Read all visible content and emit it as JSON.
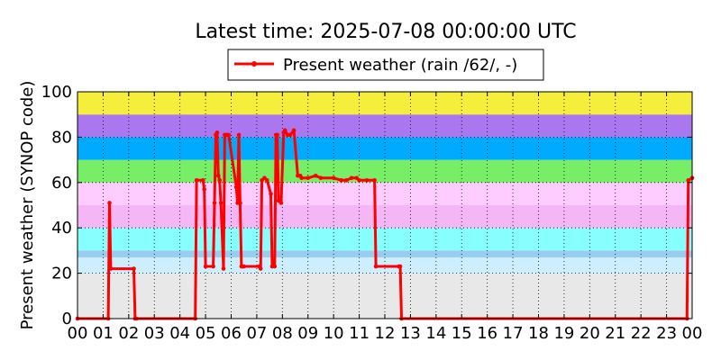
{
  "chart_data": {
    "type": "line",
    "title": "Latest time: 2025-07-08 00:00:00 UTC",
    "ylabel": "Present weather (SYNOP code)",
    "xlabel": "",
    "xlim": [
      0,
      24
    ],
    "ylim": [
      0,
      100
    ],
    "x_ticks": [
      "00",
      "01",
      "02",
      "03",
      "04",
      "05",
      "06",
      "07",
      "08",
      "09",
      "10",
      "11",
      "12",
      "13",
      "14",
      "15",
      "16",
      "17",
      "18",
      "19",
      "20",
      "21",
      "22",
      "23",
      "00"
    ],
    "y_ticks": [
      "0",
      "20",
      "40",
      "60",
      "80",
      "100"
    ],
    "grid": true,
    "legend": {
      "placement": "top",
      "entries": [
        "Present weather (rain /62/, -)"
      ]
    },
    "background_bands": [
      {
        "from": 0,
        "to": 20,
        "color": "#e8e8e8"
      },
      {
        "from": 20,
        "to": 27,
        "color": "#cceeff"
      },
      {
        "from": 27,
        "to": 30,
        "color": "#99ccee"
      },
      {
        "from": 30,
        "to": 40,
        "color": "#88ffff"
      },
      {
        "from": 40,
        "to": 50,
        "color": "#ccf2ff"
      },
      {
        "from": 40,
        "to": 50,
        "color": "#f4b6f4"
      },
      {
        "from": 50,
        "to": 60,
        "color": "#ffccff"
      },
      {
        "from": 60,
        "to": 70,
        "color": "#77ee66"
      },
      {
        "from": 70,
        "to": 80,
        "color": "#00aaff"
      },
      {
        "from": 80,
        "to": 90,
        "color": "#aa77ee"
      },
      {
        "from": 90,
        "to": 100,
        "color": "#f5ee3b"
      }
    ],
    "series": [
      {
        "name": "Present weather (rain /62/, -)",
        "color": "#ff0000",
        "x": [
          0.0,
          1.2,
          1.25,
          1.3,
          2.2,
          2.25,
          2.3,
          4.6,
          4.65,
          4.9,
          4.95,
          5.0,
          5.3,
          5.35,
          5.4,
          5.45,
          5.5,
          5.55,
          5.6,
          5.7,
          5.75,
          5.8,
          5.85,
          5.9,
          6.2,
          6.25,
          6.3,
          6.35,
          6.4,
          6.45,
          6.5,
          7.1,
          7.15,
          7.2,
          7.3,
          7.4,
          7.55,
          7.6,
          7.7,
          7.75,
          7.8,
          7.85,
          7.95,
          8.05,
          8.1,
          8.2,
          8.3,
          8.45,
          8.6,
          8.7,
          8.75,
          9.0,
          9.3,
          9.5,
          10.0,
          10.3,
          10.5,
          10.7,
          10.9,
          11.0,
          11.3,
          11.6,
          11.65,
          12.55,
          12.6,
          12.65,
          23.8,
          23.85,
          24.0
        ],
        "values": [
          0,
          0,
          51,
          22,
          22,
          0,
          0,
          0,
          61,
          61,
          57,
          23,
          23,
          51,
          81,
          82,
          63,
          61,
          51,
          22,
          81,
          81,
          81,
          81,
          58,
          51,
          81,
          51,
          23,
          23,
          23,
          23,
          22,
          61,
          62,
          61,
          55,
          23,
          23,
          81,
          81,
          52,
          51,
          82,
          83,
          81,
          81,
          83,
          63,
          63,
          62,
          62,
          63,
          62,
          62,
          61,
          61,
          62,
          62,
          61,
          61,
          61,
          23,
          23,
          23,
          0,
          0,
          61,
          62
        ]
      }
    ]
  }
}
